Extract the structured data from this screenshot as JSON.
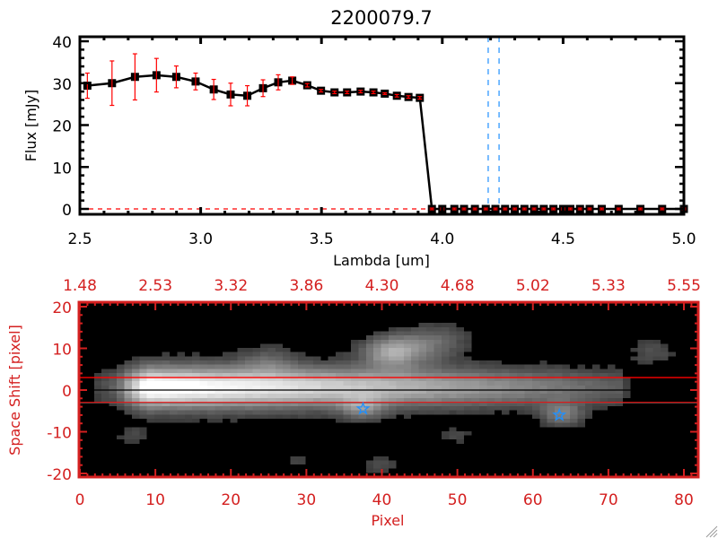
{
  "chart_data": [
    {
      "type": "line",
      "title": "2200079.7",
      "xlabel": "Lambda [um]",
      "ylabel": "Flux [mJy]",
      "xlim": [
        2.5,
        5.0
      ],
      "ylim": [
        0,
        40
      ],
      "xticks": [
        "2.5",
        "3.0",
        "3.5",
        "4.0",
        "4.5",
        "5.0"
      ],
      "xtick_values": [
        2.5,
        3.0,
        3.5,
        4.0,
        4.5,
        5.0
      ],
      "yticks": [
        "0",
        "10",
        "20",
        "30",
        "40"
      ],
      "ytick_values": [
        0,
        10,
        20,
        30,
        40
      ],
      "grid": false,
      "line_color": "#000000",
      "errorbar_color": "#ff0000",
      "marker": "square",
      "series": [
        {
          "x": [
            2.531,
            2.633,
            2.728,
            2.817,
            2.899,
            2.979,
            3.054,
            3.124,
            3.193,
            3.258,
            3.321,
            3.379,
            3.441,
            3.498,
            3.554,
            3.606,
            3.662,
            3.715,
            3.762,
            3.812,
            3.86,
            3.907,
            3.957,
            4.0,
            4.05,
            4.09,
            4.135,
            4.18,
            4.22,
            4.26,
            4.3,
            4.34,
            4.38,
            4.42,
            4.46,
            4.5,
            4.53,
            4.57,
            4.61,
            4.66,
            4.73,
            4.82,
            4.91,
            5.0
          ],
          "y": [
            29.4,
            30.0,
            31.5,
            31.9,
            31.5,
            30.4,
            28.5,
            27.3,
            27.0,
            28.8,
            30.2,
            30.6,
            29.5,
            28.2,
            27.8,
            27.8,
            28.0,
            27.8,
            27.5,
            27.0,
            26.7,
            26.5,
            0,
            0,
            0,
            0,
            0,
            0,
            0,
            0,
            0,
            0,
            0,
            0,
            0,
            0,
            0,
            0,
            0,
            0,
            0,
            0,
            0,
            0
          ],
          "yerr": [
            3.0,
            5.3,
            5.5,
            4.0,
            2.6,
            2.0,
            2.4,
            2.7,
            2.4,
            2.0,
            1.8,
            0.9,
            0.4,
            0.3,
            0.3,
            0.3,
            0.3,
            0.3,
            0.2,
            0.3,
            0.3,
            0.3,
            0.2,
            0.2,
            0.2,
            0.2,
            0.2,
            0.2,
            0.2,
            0.2,
            0.2,
            0.2,
            0.2,
            0.2,
            0.2,
            0.2,
            0.2,
            0.2,
            0.2,
            0.2,
            0.2,
            0.2,
            0.2,
            0.2
          ]
        }
      ],
      "reference_lines": [
        {
          "orientation": "vertical",
          "x": 4.19,
          "style": "dashed",
          "color": "#1e90ff"
        },
        {
          "orientation": "vertical",
          "x": 4.235,
          "style": "dashed",
          "color": "#1e90ff"
        },
        {
          "orientation": "horizontal",
          "y": 0,
          "style": "dashed",
          "color": "#ff0000"
        }
      ]
    },
    {
      "type": "heatmap",
      "xlabel": "Pixel",
      "ylabel": "Space Shift [pixel]",
      "xlim": [
        0,
        82
      ],
      "ylim": [
        -21,
        21
      ],
      "xticks": [
        "0",
        "10",
        "20",
        "30",
        "40",
        "50",
        "60",
        "70",
        "80"
      ],
      "xtick_values": [
        0,
        10,
        20,
        30,
        40,
        50,
        60,
        70,
        80
      ],
      "top_xticks": [
        "1.48",
        "2.53",
        "3.32",
        "3.86",
        "4.30",
        "4.68",
        "5.02",
        "5.33",
        "5.55"
      ],
      "yticks": [
        "-20",
        "-10",
        "0",
        "10",
        "20"
      ],
      "ytick_values": [
        -20,
        -10,
        0,
        10,
        20
      ],
      "colormap": "grayscale",
      "axis_color": "#d42020",
      "horizontal_lines": [
        {
          "y": 3,
          "color": "#ff0000"
        },
        {
          "y": -3,
          "color": "#ff0000"
        },
        {
          "y": 0,
          "color": "#000000"
        }
      ],
      "markers": [
        {
          "x": 37.5,
          "y": -4.5,
          "symbol": "star",
          "color": "#1e90ff"
        },
        {
          "x": 63.5,
          "y": -6.0,
          "symbol": "star",
          "color": "#1e90ff"
        }
      ]
    }
  ]
}
